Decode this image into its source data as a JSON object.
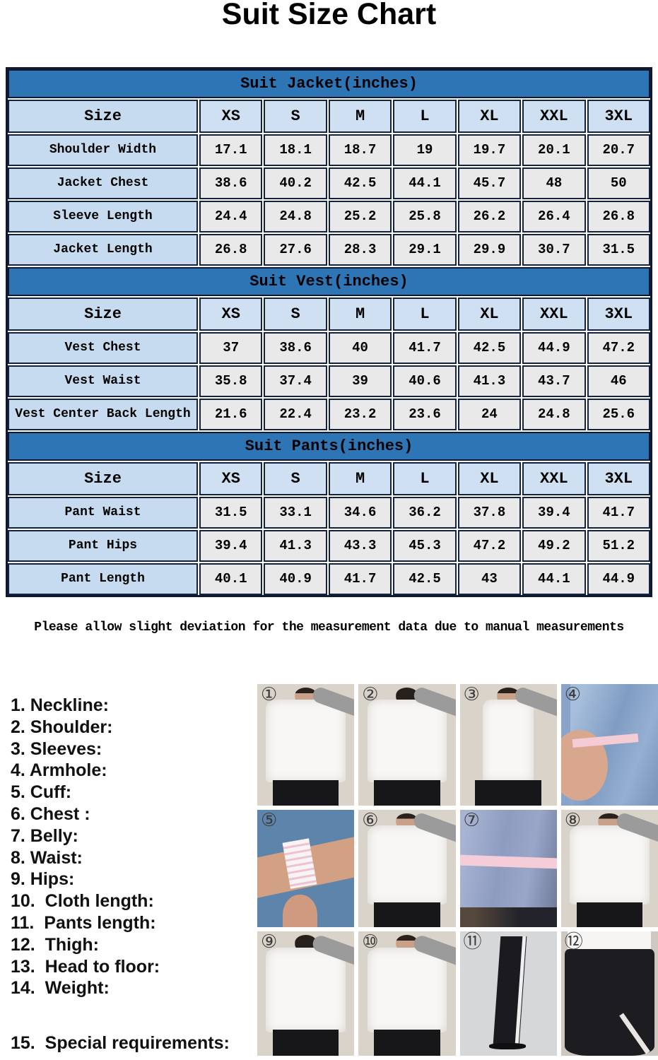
{
  "title": "Suit Size Chart",
  "note": "Please allow slight deviation for the measurement data due to manual measurements",
  "table": {
    "size_label": "Size",
    "sizes": [
      "XS",
      "S",
      "M",
      "L",
      "XL",
      "XXL",
      "3XL"
    ],
    "sections": [
      {
        "header": "Suit Jacket(inches)",
        "rows": [
          {
            "label": "Shoulder Width",
            "values": [
              "17.1",
              "18.1",
              "18.7",
              "19",
              "19.7",
              "20.1",
              "20.7"
            ]
          },
          {
            "label": "Jacket Chest",
            "values": [
              "38.6",
              "40.2",
              "42.5",
              "44.1",
              "45.7",
              "48",
              "50"
            ]
          },
          {
            "label": "Sleeve Length",
            "values": [
              "24.4",
              "24.8",
              "25.2",
              "25.8",
              "26.2",
              "26.4",
              "26.8"
            ]
          },
          {
            "label": "Jacket Length",
            "values": [
              "26.8",
              "27.6",
              "28.3",
              "29.1",
              "29.9",
              "30.7",
              "31.5"
            ]
          }
        ]
      },
      {
        "header": "Suit Vest(inches)",
        "rows": [
          {
            "label": "Vest Chest",
            "values": [
              "37",
              "38.6",
              "40",
              "41.7",
              "42.5",
              "44.9",
              "47.2"
            ]
          },
          {
            "label": "Vest Waist",
            "values": [
              "35.8",
              "37.4",
              "39",
              "40.6",
              "41.3",
              "43.7",
              "46"
            ]
          },
          {
            "label": "Vest Center Back Length",
            "values": [
              "21.6",
              "22.4",
              "23.2",
              "23.6",
              "24",
              "24.8",
              "25.6"
            ]
          }
        ]
      },
      {
        "header": "Suit Pants(inches)",
        "rows": [
          {
            "label": "Pant Waist",
            "values": [
              "31.5",
              "33.1",
              "34.6",
              "36.2",
              "37.8",
              "39.4",
              "41.7"
            ]
          },
          {
            "label": "Pant Hips",
            "values": [
              "39.4",
              "41.3",
              "43.3",
              "45.3",
              "47.2",
              "49.2",
              "51.2"
            ]
          },
          {
            "label": "Pant Length",
            "values": [
              "40.1",
              "40.9",
              "41.7",
              "42.5",
              "43",
              "44.1",
              "44.9"
            ]
          }
        ]
      }
    ]
  },
  "measure_list": [
    "1. Neckline:",
    "2. Shoulder:",
    "3. Sleeves:",
    "4. Armhole:",
    "5. Cuff:",
    "6. Chest :",
    "7. Belly:",
    "8. Waist:",
    "9. Hips:",
    "10.  Cloth length:",
    "11.  Pants length:",
    "12.  Thigh:",
    "13.  Head to floor:",
    "14.  Weight:",
    "15.  Special requirements:"
  ],
  "photos": [
    {
      "num": "①",
      "name": "neckline",
      "variant": "person-front"
    },
    {
      "num": "②",
      "name": "shoulder",
      "variant": "person-back"
    },
    {
      "num": "③",
      "name": "sleeves",
      "variant": "person-side"
    },
    {
      "num": "④",
      "name": "armhole",
      "variant": "armhole-closeup"
    },
    {
      "num": "⑤",
      "name": "cuff",
      "variant": "cuff-closeup"
    },
    {
      "num": "⑥",
      "name": "chest",
      "variant": "person-front"
    },
    {
      "num": "⑦",
      "name": "belly",
      "variant": "belly-closeup"
    },
    {
      "num": "⑧",
      "name": "waist",
      "variant": "person-front"
    },
    {
      "num": "⑨",
      "name": "hips",
      "variant": "person-back"
    },
    {
      "num": "⑩",
      "name": "cloth-length",
      "variant": "person-front"
    },
    {
      "num": "⑪",
      "name": "pants-length",
      "variant": "pants-side"
    },
    {
      "num": "⑫",
      "name": "thigh",
      "variant": "pants-closeup"
    }
  ],
  "colors": {
    "header_blue": "#2e75b5",
    "light_blue": "#c6dbef",
    "size_row_blue": "#cfe0f2",
    "value_gray": "#e9e9e9",
    "frame_dark": "#0e1830"
  }
}
